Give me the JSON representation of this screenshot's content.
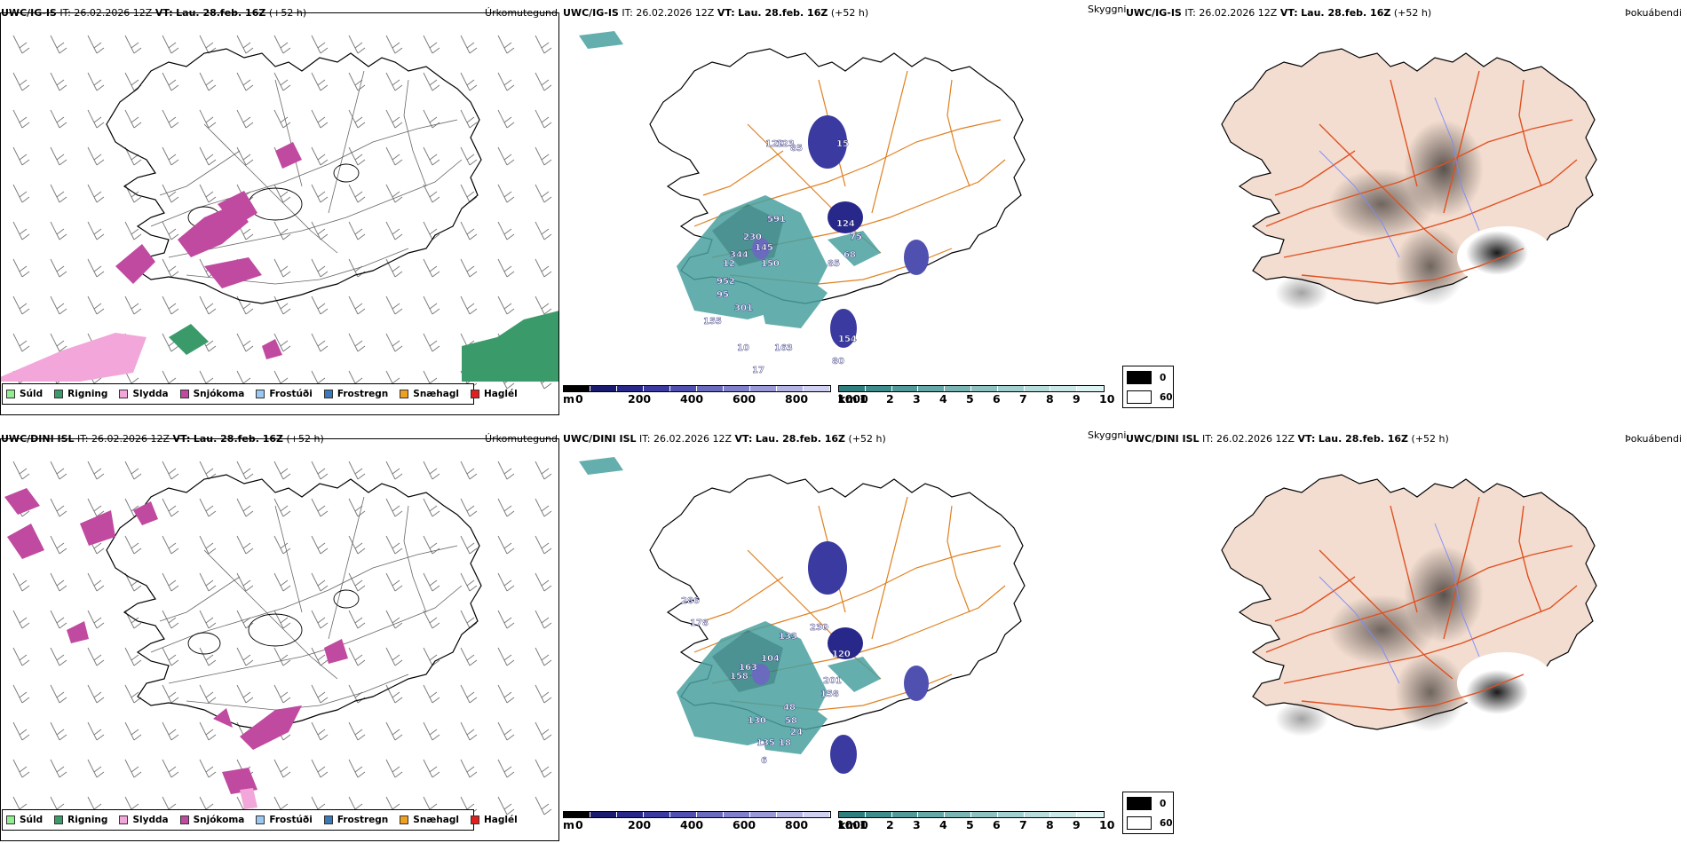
{
  "rows": [
    {
      "model": "UWC/IG-IS",
      "it_label": "IT:",
      "it_value": "26.02.2026 12Z",
      "vt_label": "VT:",
      "vt_value": "Lau. 28.feb. 16Z",
      "lead": "(+52 h)",
      "panel1_type": "Úrkomutegund",
      "panel2_type": "Skyggni",
      "panel3_type": "Þokuábendi",
      "labels": [
        "591",
        "230",
        "344",
        "145",
        "150",
        "952",
        "95",
        "301",
        "155",
        "154",
        "80",
        "75",
        "124",
        "85",
        "68",
        "163",
        "129",
        "123",
        "85",
        "15",
        "12",
        "10",
        "17"
      ]
    },
    {
      "model": "UWC/DINI ISL",
      "it_label": "IT:",
      "it_value": "26.02.2026 12Z",
      "vt_label": "VT:",
      "vt_value": "Lau. 28.feb. 16Z",
      "lead": "(+52 h)",
      "panel1_type": "Úrkomutegund",
      "panel2_type": "Skyggni",
      "panel3_type": "Þokuábendi",
      "labels": [
        "286",
        "178",
        "163",
        "158",
        "133",
        "104",
        "230",
        "120",
        "201",
        "158",
        "130",
        "135",
        "48",
        "58",
        "24",
        "18",
        "6"
      ]
    }
  ],
  "precip_legend": [
    {
      "label": "Súld",
      "color": "#90ee90"
    },
    {
      "label": "Rigning",
      "color": "#3a9a6a"
    },
    {
      "label": "Slydda",
      "color": "#f2a6d9"
    },
    {
      "label": "Snjókoma",
      "color": "#c04aa0"
    },
    {
      "label": "Frostúði",
      "color": "#9ac8f0"
    },
    {
      "label": "Frostregn",
      "color": "#3a78b8"
    },
    {
      "label": "Snæhagl",
      "color": "#f0a020"
    },
    {
      "label": "Haglél",
      "color": "#e02020"
    }
  ],
  "ceiling_bar": {
    "unit": "m",
    "ticks": [
      "0",
      "200",
      "400",
      "600",
      "800",
      "1000"
    ],
    "colors": [
      "#000000",
      "#1a1a6e",
      "#28288a",
      "#3a3aa0",
      "#5050b0",
      "#6a6abf",
      "#8080cc",
      "#9a9ad8",
      "#b4b4e4",
      "#d0d0f0"
    ]
  },
  "visibility_bar": {
    "unit": "km",
    "ticks": [
      "1",
      "2",
      "3",
      "4",
      "5",
      "6",
      "7",
      "8",
      "9",
      "10"
    ],
    "colors": [
      "#2f7f7f",
      "#3f8c8c",
      "#529a9a",
      "#66a8a8",
      "#7ab5b5",
      "#8ec2c2",
      "#a2cfcf",
      "#b6dcdc",
      "#cae8e8",
      "#def3f3"
    ]
  },
  "fog_legend": [
    {
      "value": "0",
      "color": "#000000"
    },
    {
      "value": "60",
      "color": "#ffffff"
    }
  ]
}
